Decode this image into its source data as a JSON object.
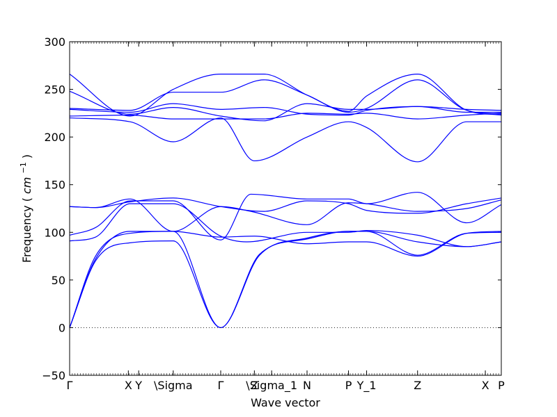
{
  "chart_data": {
    "type": "line",
    "title": "",
    "xlabel": "Wave vector",
    "ylabel": "Frequency",
    "ylabel_unit_base": "cm",
    "ylabel_unit_exp": "−1",
    "ylim": [
      -50,
      300
    ],
    "yticks": [
      -50,
      0,
      50,
      100,
      150,
      200,
      250,
      300
    ],
    "xlim": [
      0,
      1
    ],
    "xticks": [
      {
        "x": 0.0,
        "label": "Γ"
      },
      {
        "x": 0.136,
        "label": "X"
      },
      {
        "x": 0.16,
        "label": "Y"
      },
      {
        "x": 0.24,
        "label": "\\Sigma"
      },
      {
        "x": 0.35,
        "label": "Γ"
      },
      {
        "x": 0.428,
        "label": "Z"
      },
      {
        "x": 0.468,
        "label": "\\Sigma_1"
      },
      {
        "x": 0.55,
        "label": "N"
      },
      {
        "x": 0.646,
        "label": "P"
      },
      {
        "x": 0.688,
        "label": "Y_1"
      },
      {
        "x": 0.806,
        "label": "Z"
      },
      {
        "x": 0.963,
        "label": "X"
      },
      {
        "x": 1.0,
        "label": "P"
      }
    ],
    "zero_line": true,
    "grid": false,
    "line_color": "#0000ff",
    "series": [
      {
        "x": [
          0,
          0.06,
          0.14,
          0.24,
          0.35,
          0.428,
          0.55,
          0.646,
          0.688,
          0.806,
          0.92,
          1.0
        ],
        "y": [
          0,
          75,
          99,
          101,
          95,
          96,
          88,
          90,
          90,
          75,
          99,
          101
        ]
      },
      {
        "x": [
          0,
          0.06,
          0.14,
          0.24,
          0.35,
          0.44,
          0.55,
          0.646,
          0.688,
          0.806,
          0.92,
          1.0
        ],
        "y": [
          0,
          70,
          89,
          91,
          0,
          76,
          94,
          101,
          101,
          76,
          99,
          100
        ]
      },
      {
        "x": [
          0,
          0.06,
          0.14,
          0.24,
          0.35,
          0.44,
          0.55,
          0.646,
          0.688,
          0.806,
          0.92,
          1.0
        ],
        "y": [
          0,
          72,
          101,
          101,
          0,
          77,
          93,
          101,
          101,
          90,
          85,
          90
        ]
      },
      {
        "x": [
          0,
          0.06,
          0.14,
          0.24,
          0.35,
          0.41,
          0.55,
          0.646,
          0.688,
          0.806,
          0.92,
          1.0
        ],
        "y": [
          91,
          95,
          130,
          130,
          96,
          90,
          100,
          100,
          102,
          97,
          85,
          90
        ]
      },
      {
        "x": [
          0,
          0.06,
          0.14,
          0.24,
          0.35,
          0.42,
          0.55,
          0.646,
          0.688,
          0.806,
          0.92,
          1.0
        ],
        "y": [
          97,
          105,
          133,
          133,
          92,
          140,
          135,
          135,
          130,
          142,
          110,
          129
        ]
      },
      {
        "x": [
          0,
          0.06,
          0.14,
          0.24,
          0.35,
          0.42,
          0.55,
          0.646,
          0.688,
          0.806,
          0.92,
          1.0
        ],
        "y": [
          127,
          126,
          135,
          101,
          127,
          122,
          108,
          131,
          130,
          122,
          125,
          134
        ]
      },
      {
        "x": [
          0,
          0.06,
          0.14,
          0.24,
          0.35,
          0.45,
          0.55,
          0.646,
          0.688,
          0.806,
          0.92,
          1.0
        ],
        "y": [
          127,
          126,
          132,
          136,
          127,
          122,
          133,
          130,
          123,
          120,
          130,
          136
        ]
      },
      {
        "x": [
          0,
          0.14,
          0.24,
          0.35,
          0.428,
          0.55,
          0.646,
          0.688,
          0.806,
          0.92,
          1.0
        ],
        "y": [
          220,
          216,
          195,
          220,
          175,
          200,
          216,
          210,
          174,
          216,
          216
        ]
      },
      {
        "x": [
          0,
          0.14,
          0.24,
          0.35,
          0.45,
          0.55,
          0.646,
          0.688,
          0.806,
          0.92,
          1.0
        ],
        "y": [
          222,
          223,
          219,
          219,
          219,
          225,
          224,
          225,
          219,
          223,
          225
        ]
      },
      {
        "x": [
          0,
          0.14,
          0.24,
          0.35,
          0.45,
          0.55,
          0.646,
          0.688,
          0.806,
          0.92,
          1.0
        ],
        "y": [
          229,
          226,
          235,
          229,
          231,
          224,
          223,
          228,
          232,
          229,
          228
        ]
      },
      {
        "x": [
          0,
          0.14,
          0.24,
          0.35,
          0.45,
          0.55,
          0.646,
          0.688,
          0.806,
          0.92,
          1.0
        ],
        "y": [
          230,
          228,
          247,
          247,
          260,
          244,
          226,
          230,
          260,
          228,
          224
        ]
      },
      {
        "x": [
          0,
          0.14,
          0.24,
          0.35,
          0.45,
          0.55,
          0.646,
          0.688,
          0.806,
          0.92,
          1.0
        ],
        "y": [
          266,
          222,
          250,
          266,
          266,
          244,
          227,
          243,
          266,
          228,
          223
        ]
      },
      {
        "x": [
          0,
          0.14,
          0.24,
          0.35,
          0.45,
          0.55,
          0.646,
          0.688,
          0.806,
          0.92,
          1.0
        ],
        "y": [
          248,
          224,
          231,
          222,
          217,
          235,
          229,
          229,
          232,
          226,
          226
        ]
      }
    ]
  }
}
